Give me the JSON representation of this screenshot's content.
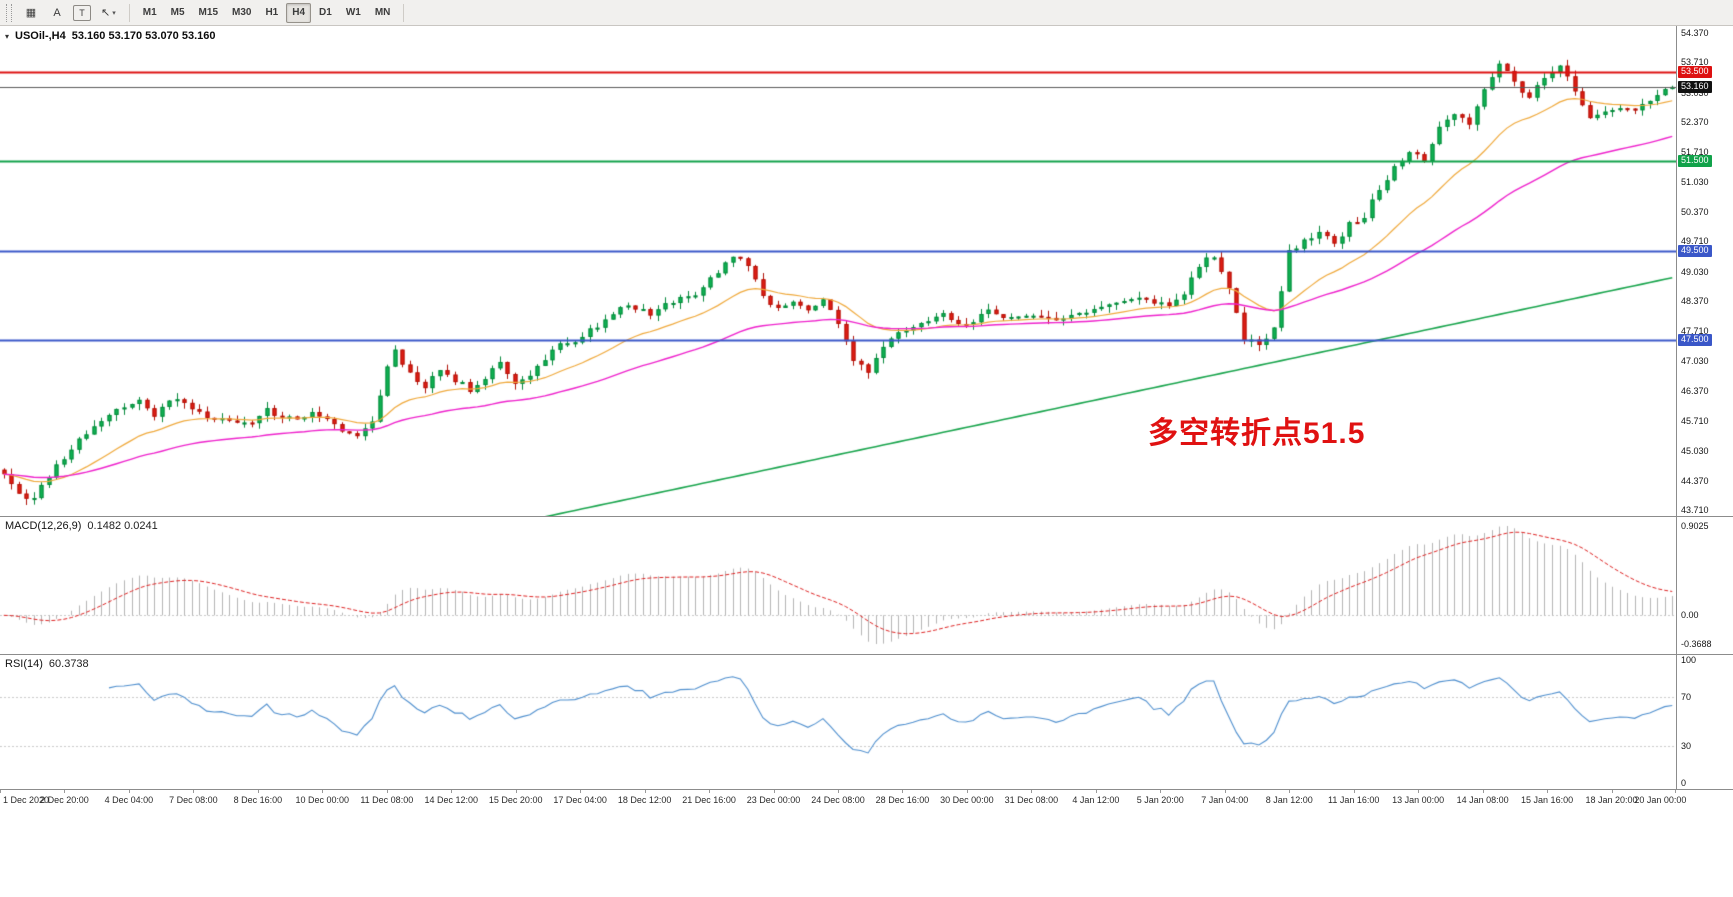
{
  "toolbar": {
    "left_buttons": [
      {
        "name": "chart-window-icon",
        "glyph": "▦",
        "boxed": false,
        "caret": false
      },
      {
        "name": "text-label-button",
        "glyph": "A",
        "boxed": false,
        "caret": false
      },
      {
        "name": "text-frame-button",
        "glyph": "T",
        "boxed": true,
        "caret": false
      },
      {
        "name": "cursor-tool-button",
        "glyph": "↖",
        "boxed": false,
        "caret": true
      }
    ],
    "timeframes": [
      {
        "label": "M1",
        "active": false
      },
      {
        "label": "M5",
        "active": false
      },
      {
        "label": "M15",
        "active": false
      },
      {
        "label": "M30",
        "active": false
      },
      {
        "label": "H1",
        "active": false
      },
      {
        "label": "H4",
        "active": true
      },
      {
        "label": "D1",
        "active": false
      },
      {
        "label": "W1",
        "active": false
      },
      {
        "label": "MN",
        "active": false
      }
    ]
  },
  "header": {
    "collapse_arrow": "▾",
    "symbol": "USOil-,H4",
    "ohlc": "53.160 53.170 53.070 53.160"
  },
  "chart_data": {
    "type": "candlestick",
    "title": "USOil-,H4",
    "symbol": "USOil-",
    "timeframe": "H4",
    "ohlc_current": {
      "open": "53.160",
      "high": "53.170",
      "low": "53.070",
      "close": "53.160"
    },
    "price_axis": {
      "min": 43.58,
      "max": 54.52,
      "ticks": [
        "54.370",
        "53.710",
        "53.030",
        "52.370",
        "51.710",
        "51.030",
        "50.370",
        "49.710",
        "49.030",
        "48.370",
        "47.710",
        "47.030",
        "46.370",
        "45.710",
        "45.030",
        "44.370",
        "43.710"
      ]
    },
    "x_axis_labels": [
      "1 Dec 2020",
      "2 Dec 20:00",
      "4 Dec 04:00",
      "7 Dec 08:00",
      "8 Dec 16:00",
      "10 Dec 00:00",
      "11 Dec 08:00",
      "14 Dec 12:00",
      "15 Dec 20:00",
      "17 Dec 04:00",
      "18 Dec 12:00",
      "21 Dec 16:00",
      "23 Dec 00:00",
      "24 Dec 08:00",
      "28 Dec 16:00",
      "30 Dec 00:00",
      "31 Dec 08:00",
      "4 Jan 12:00",
      "5 Jan 20:00",
      "7 Jan 04:00",
      "8 Jan 12:00",
      "11 Jan 16:00",
      "13 Jan 00:00",
      "14 Jan 08:00",
      "15 Jan 16:00",
      "18 Jan 20:00",
      "20 Jan 00:00"
    ],
    "candles": {
      "count": 223,
      "close_anchors": [
        [
          0,
          44.55
        ],
        [
          2,
          44.1
        ],
        [
          4,
          43.95
        ],
        [
          6,
          44.5
        ],
        [
          9,
          45.1
        ],
        [
          12,
          45.6
        ],
        [
          15,
          45.95
        ],
        [
          18,
          46.15
        ],
        [
          20,
          45.85
        ],
        [
          23,
          46.25
        ],
        [
          26,
          45.9
        ],
        [
          29,
          45.7
        ],
        [
          32,
          45.6
        ],
        [
          35,
          45.95
        ],
        [
          38,
          45.75
        ],
        [
          41,
          45.85
        ],
        [
          44,
          45.6
        ],
        [
          47,
          45.35
        ],
        [
          49,
          45.7
        ],
        [
          51,
          46.9
        ],
        [
          52,
          47.3
        ],
        [
          54,
          46.75
        ],
        [
          56,
          46.5
        ],
        [
          58,
          46.85
        ],
        [
          60,
          46.6
        ],
        [
          62,
          46.4
        ],
        [
          64,
          46.7
        ],
        [
          66,
          47.05
        ],
        [
          68,
          46.5
        ],
        [
          70,
          46.75
        ],
        [
          72,
          47.1
        ],
        [
          74,
          47.45
        ],
        [
          77,
          47.55
        ],
        [
          80,
          48.0
        ],
        [
          83,
          48.3
        ],
        [
          86,
          48.05
        ],
        [
          89,
          48.4
        ],
        [
          92,
          48.55
        ],
        [
          95,
          49.0
        ],
        [
          97,
          49.35
        ],
        [
          99,
          49.2
        ],
        [
          101,
          48.5
        ],
        [
          103,
          48.2
        ],
        [
          105,
          48.4
        ],
        [
          107,
          48.15
        ],
        [
          109,
          48.4
        ],
        [
          111,
          47.85
        ],
        [
          113,
          47.1
        ],
        [
          115,
          46.75
        ],
        [
          117,
          47.4
        ],
        [
          119,
          47.7
        ],
        [
          122,
          47.95
        ],
        [
          125,
          48.05
        ],
        [
          128,
          47.8
        ],
        [
          131,
          48.15
        ],
        [
          134,
          48.0
        ],
        [
          137,
          48.1
        ],
        [
          140,
          47.95
        ],
        [
          143,
          48.1
        ],
        [
          146,
          48.25
        ],
        [
          149,
          48.35
        ],
        [
          152,
          48.45
        ],
        [
          155,
          48.25
        ],
        [
          157,
          48.55
        ],
        [
          159,
          49.2
        ],
        [
          161,
          49.4
        ],
        [
          163,
          48.6
        ],
        [
          165,
          47.55
        ],
        [
          167,
          47.35
        ],
        [
          169,
          47.8
        ],
        [
          171,
          49.45
        ],
        [
          173,
          49.75
        ],
        [
          175,
          49.9
        ],
        [
          177,
          49.65
        ],
        [
          179,
          50.1
        ],
        [
          181,
          50.3
        ],
        [
          183,
          50.85
        ],
        [
          185,
          51.4
        ],
        [
          187,
          51.75
        ],
        [
          189,
          51.55
        ],
        [
          191,
          52.3
        ],
        [
          193,
          52.6
        ],
        [
          195,
          52.3
        ],
        [
          197,
          53.15
        ],
        [
          199,
          53.65
        ],
        [
          201,
          53.25
        ],
        [
          203,
          52.9
        ],
        [
          205,
          53.4
        ],
        [
          207,
          53.7
        ],
        [
          209,
          53.05
        ],
        [
          211,
          52.45
        ],
        [
          213,
          52.55
        ],
        [
          215,
          52.7
        ],
        [
          217,
          52.6
        ],
        [
          219,
          52.9
        ],
        [
          221,
          53.05
        ],
        [
          222,
          53.16
        ]
      ],
      "noise": 0.07,
      "wick": 0.14,
      "seed": 11
    },
    "candle_colors": {
      "up_fill": "#0fb353",
      "up_stroke": "#078a3c",
      "down_fill": "#e21d12",
      "down_stroke": "#b0130a"
    },
    "levels": [
      {
        "price": 53.5,
        "label": "53.500",
        "color": "#dd1111",
        "width": 2
      },
      {
        "price": 51.5,
        "label": "51.500",
        "color": "#11a24a",
        "width": 2
      },
      {
        "price": 49.5,
        "label": "49.500",
        "color": "#3a57c8",
        "width": 2
      },
      {
        "price": 47.5,
        "label": "47.500",
        "color": "#3a57c8",
        "width": 2
      }
    ],
    "current_price": {
      "price": 53.16,
      "label": "53.160",
      "line_color": "#5a5a5a",
      "badge_bg": "#111111"
    },
    "moving_averages": [
      {
        "name": "ma-fast-orange",
        "color": "#efa93c",
        "type": "ema",
        "period": 18,
        "width": 1.2
      },
      {
        "name": "ma-mid-magenta",
        "color": "#ee22cc",
        "type": "ema",
        "period": 48,
        "width": 1.4
      },
      {
        "name": "ma-slow-green",
        "color": "#18a44c",
        "type": "linear",
        "start": 41.0,
        "end": 48.9,
        "width": 1.6
      }
    ],
    "annotation": {
      "text": "多空转折点51.5",
      "color": "#e01111",
      "x_frac": 0.685,
      "price": 46.0,
      "font_size": 30
    },
    "indicators": {
      "macd": {
        "label": "MACD(12,26,9)",
        "values_text": "0.1482 0.0241",
        "fast": 12,
        "slow": 26,
        "signal": 9,
        "axis_ticks": {
          "top": "0.9025",
          "zero": "0.00",
          "bottom": "-0.3688"
        },
        "hist_color": "#b5b5b5",
        "signal_color": "#dd2222"
      },
      "rsi": {
        "label": "RSI(14)",
        "value_text": "60.3738",
        "period": 14,
        "levels": [
          70,
          30
        ],
        "axis_ticks": [
          "100",
          "70",
          "30",
          "0"
        ],
        "line_color": "#4f8fce",
        "range": [
          0,
          100
        ]
      }
    }
  }
}
